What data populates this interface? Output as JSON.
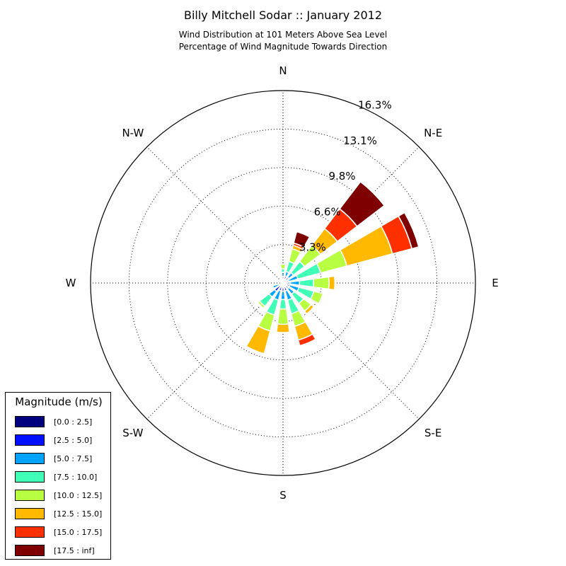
{
  "title": "Billy Mitchell Sodar :: January 2012",
  "subtitle": [
    "Wind Distribution at 101 Meters Above Sea Level",
    "Percentage of Wind Magnitude Towards Direction"
  ],
  "colors": [
    "#00007f",
    "#0010ff",
    "#00a4ff",
    "#40ffb7",
    "#b7ff40",
    "#ffb900",
    "#ff3000",
    "#7f0000"
  ],
  "chart_data": {
    "type": "windrose",
    "title": "Billy Mitchell Sodar :: January 2012",
    "direction_labels": [
      "N",
      "N-E",
      "E",
      "S-E",
      "S",
      "S-W",
      "W",
      "N-W"
    ],
    "radial_tick_labels": [
      "3.3%",
      "6.6%",
      "9.8%",
      "13.1%",
      "16.3%"
    ],
    "radial_ticks": [
      3.26,
      6.52,
      9.78,
      13.04,
      16.3
    ],
    "rmax": 16.3,
    "grid": true,
    "legend_title": "Magnitude (m/s)",
    "legend_position": "lower-left",
    "series": [
      {
        "name": "[0.0 : 2.5]"
      },
      {
        "name": "[2.5 : 5.0]"
      },
      {
        "name": "[5.0 : 7.5]"
      },
      {
        "name": "[7.5 : 10.0]"
      },
      {
        "name": "[10.0 : 12.5]"
      },
      {
        "name": "[12.5 : 15.0]"
      },
      {
        "name": "[15.0 : 17.5]"
      },
      {
        "name": "[17.5 : inf]"
      }
    ],
    "directions_deg": [
      0,
      22.5,
      45,
      67.5,
      90,
      112.5,
      135,
      157.5,
      180,
      202.5,
      225,
      247.5,
      270,
      292.5,
      315,
      337.5
    ],
    "cumulative_percent": [
      [
        0.1,
        0.55,
        0.9,
        1.2,
        1.6,
        1.6,
        1.6,
        1.6
      ],
      [
        0.2,
        0.6,
        1.0,
        1.9,
        3.0,
        3.3,
        3.5,
        4.5
      ],
      [
        0.3,
        0.6,
        1.1,
        2.3,
        4.0,
        5.8,
        7.9,
        10.8
      ],
      [
        0.25,
        0.5,
        1.3,
        3.3,
        5.6,
        9.6,
        11.3,
        11.9
      ],
      [
        0.25,
        0.6,
        1.4,
        2.6,
        3.9,
        4.4,
        4.45,
        4.5
      ],
      [
        0.25,
        0.6,
        1.4,
        2.7,
        3.5,
        3.55,
        3.6,
        3.6
      ],
      [
        0.2,
        0.6,
        1.2,
        2.2,
        3.0,
        3.3,
        3.35,
        3.35
      ],
      [
        0.2,
        0.7,
        1.5,
        2.7,
        3.8,
        5.0,
        5.5,
        5.5
      ],
      [
        0.2,
        0.7,
        1.4,
        2.2,
        3.5,
        4.2,
        4.2,
        4.2
      ],
      [
        0.2,
        0.7,
        1.5,
        2.8,
        4.2,
        6.2,
        6.3,
        6.3
      ],
      [
        0.2,
        0.9,
        1.5,
        2.5,
        2.7,
        2.7,
        2.7,
        2.7
      ],
      [
        0.15,
        0.3,
        0.9,
        1.0,
        1.0,
        1.0,
        1.0,
        1.0
      ],
      [
        0.1,
        0.15,
        0.15,
        0.15,
        0.15,
        0.15,
        0.15,
        0.15
      ],
      [
        0.1,
        0.3,
        0.5,
        0.5,
        0.6,
        0.6,
        0.6,
        0.6
      ],
      [
        0.1,
        0.3,
        0.35,
        0.35,
        0.35,
        0.35,
        0.35,
        0.35
      ],
      [
        0.05,
        0.1,
        0.1,
        0.1,
        0.1,
        0.1,
        0.1,
        0.1
      ]
    ]
  }
}
